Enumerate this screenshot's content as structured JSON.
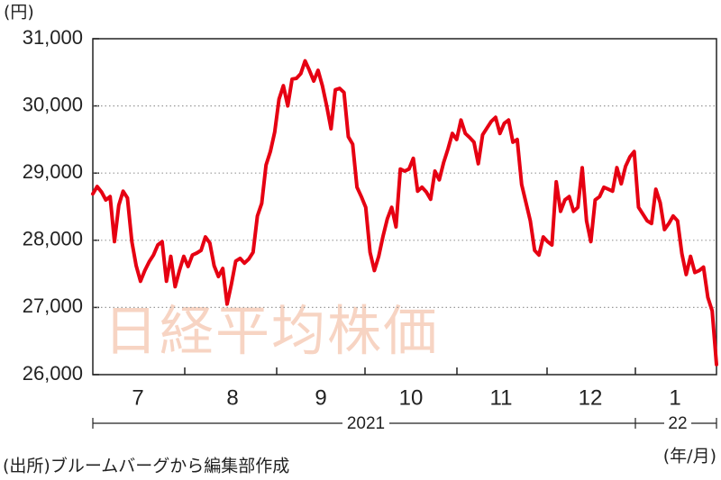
{
  "chart_data": {
    "type": "line",
    "title": "日経平均株価",
    "y_unit": "(円)",
    "source": "(出所)ブルームバーグから編集部作成",
    "x_unit": "(年/月)",
    "months": [
      "7",
      "8",
      "9",
      "10",
      "11",
      "12",
      "1"
    ],
    "years": [
      "2021",
      "22"
    ],
    "ylim": [
      26000,
      31000
    ],
    "yticks": [
      {
        "value": 26000,
        "label": "26,000"
      },
      {
        "value": 27000,
        "label": "27,000"
      },
      {
        "value": 28000,
        "label": "28,000"
      },
      {
        "value": 29000,
        "label": "29,000"
      },
      {
        "value": 30000,
        "label": "30,000"
      },
      {
        "value": 31000,
        "label": "31,000"
      }
    ],
    "grid": true,
    "color": "#e60012",
    "values": [
      28690,
      28800,
      28720,
      28600,
      28650,
      27980,
      28520,
      28730,
      28630,
      27980,
      27620,
      27390,
      27550,
      27680,
      27780,
      27930,
      27980,
      27390,
      27760,
      27310,
      27550,
      27760,
      27610,
      27780,
      27810,
      27850,
      28050,
      27960,
      27620,
      27460,
      27580,
      27050,
      27350,
      27690,
      27730,
      27660,
      27720,
      27820,
      28360,
      28550,
      29120,
      29320,
      29610,
      30100,
      30300,
      30000,
      30400,
      30410,
      30480,
      30670,
      30530,
      30370,
      30530,
      30300,
      30000,
      29660,
      30240,
      30260,
      30200,
      29540,
      29430,
      28790,
      28650,
      28490,
      27820,
      27550,
      27760,
      28060,
      28320,
      28490,
      28200,
      29060,
      29030,
      29060,
      29220,
      28730,
      28790,
      28720,
      28610,
      29030,
      28900,
      29160,
      29360,
      29590,
      29500,
      29790,
      29590,
      29530,
      29460,
      29140,
      29570,
      29670,
      29770,
      29830,
      29590,
      29740,
      29790,
      29460,
      29500,
      28830,
      28560,
      28290,
      27850,
      27780,
      28050,
      27980,
      27930,
      28870,
      28430,
      28600,
      28650,
      28430,
      28490,
      29080,
      28290,
      27980,
      28600,
      28650,
      28790,
      28760,
      28730,
      29080,
      28840,
      29100,
      29240,
      29320,
      28490,
      28390,
      28290,
      28250,
      28760,
      28560,
      28160,
      28250,
      28360,
      28290,
      27800,
      27490,
      27760,
      27520,
      27550,
      27600,
      27150,
      26950,
      26150
    ]
  }
}
